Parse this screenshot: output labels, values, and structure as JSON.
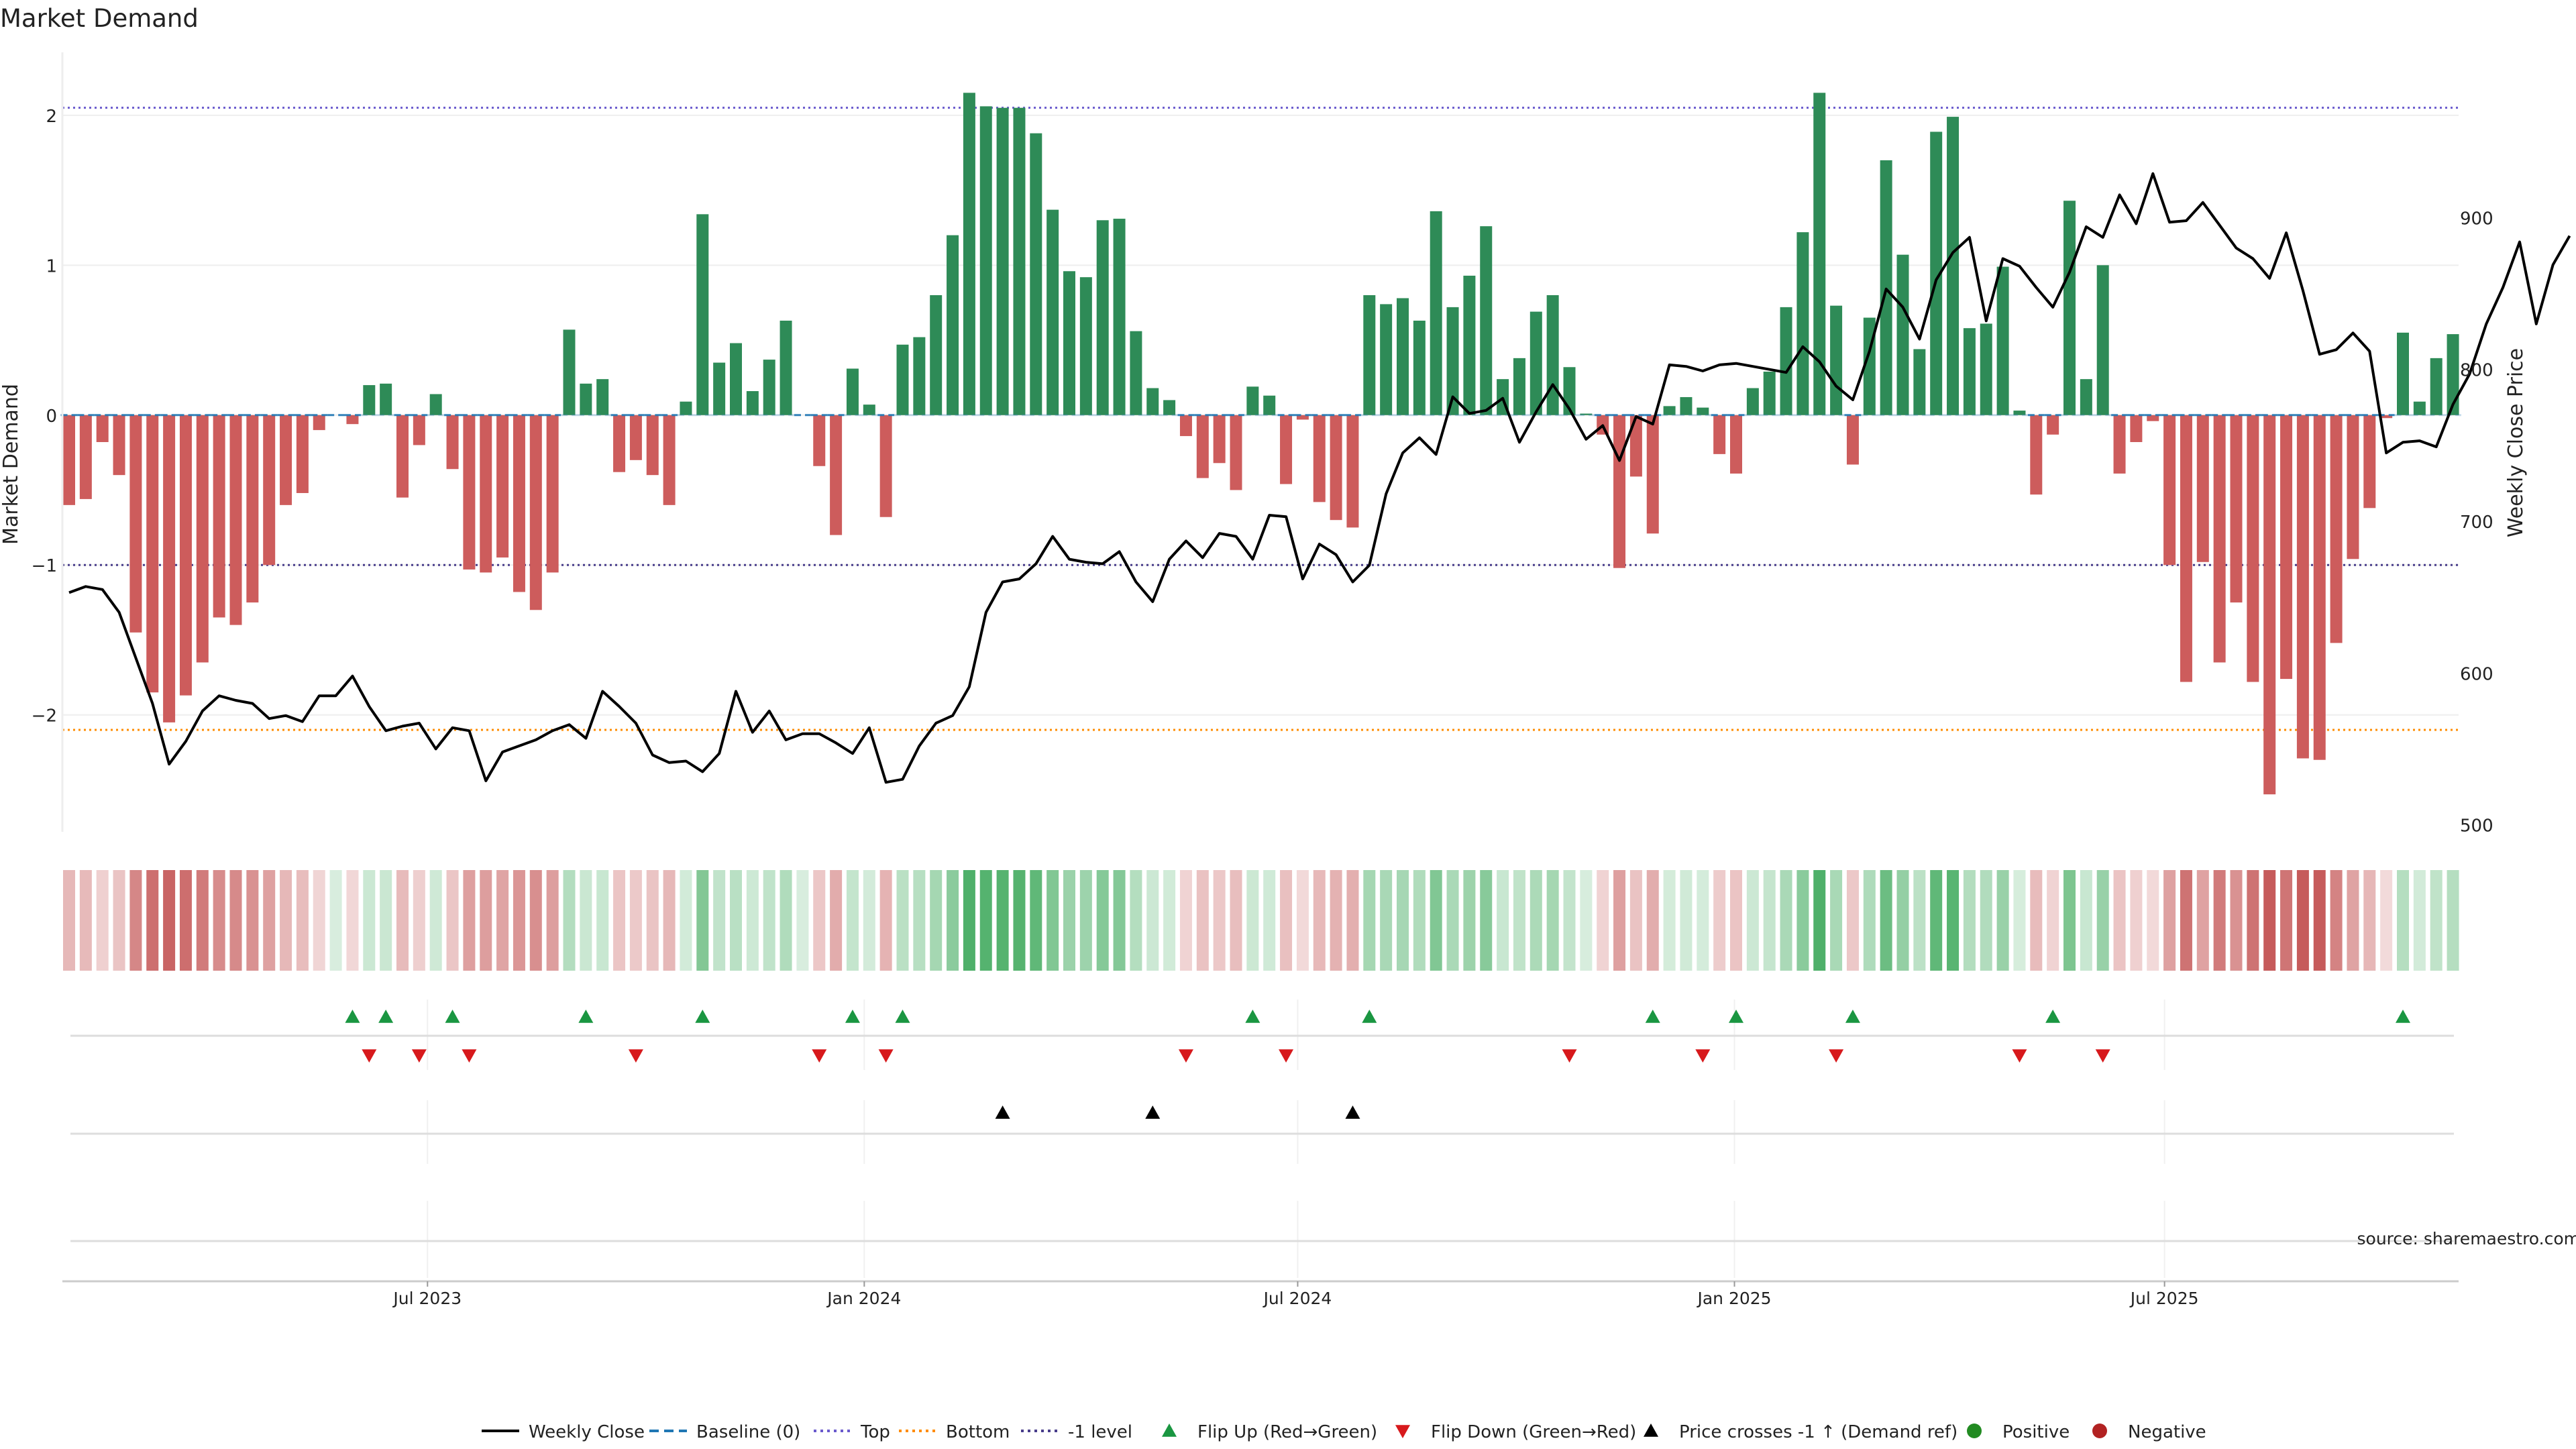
{
  "chart_data": {
    "type": "bar",
    "title": "Market Demand",
    "ylabel": "Market Demand",
    "y2label": "Weekly Close Price",
    "ylim": [
      -2.78,
      2.42
    ],
    "y2lim": [
      495.4,
      1008.9
    ],
    "yticks": [
      -2,
      -1,
      0,
      1,
      2
    ],
    "yticklabels": [
      "−2",
      "−1",
      "0",
      "1",
      "2"
    ],
    "y2ticks": [
      500,
      600,
      700,
      800,
      900
    ],
    "y2ticklabels": [
      "500",
      "600",
      "700",
      "800",
      "900"
    ],
    "reference_levels": {
      "top": 2.05,
      "bottom": -2.1,
      "minus_one": -1.0,
      "baseline": 0
    },
    "xticklabels": [
      "Jul 2023",
      "Jan 2024",
      "Jul 2024",
      "Jan 2025",
      "Jul 2025"
    ],
    "xtick_positions": [
      21.5,
      47.7,
      73.7,
      99.9,
      125.7
    ],
    "n_weeks": 144,
    "demand": [
      -0.6,
      -0.56,
      -0.18,
      -0.4,
      -1.45,
      -1.85,
      -2.05,
      -1.87,
      -1.65,
      -1.35,
      -1.4,
      -1.25,
      -1.0,
      -0.6,
      -0.52,
      -0.1,
      0.0,
      -0.06,
      0.2,
      0.21,
      -0.55,
      -0.2,
      0.14,
      -0.36,
      -1.03,
      -1.05,
      -0.95,
      -1.18,
      -1.3,
      -1.05,
      0.57,
      0.21,
      0.24,
      -0.38,
      -0.3,
      -0.4,
      -0.6,
      0.09,
      1.34,
      0.35,
      0.48,
      0.16,
      0.37,
      0.63,
      0.0,
      -0.34,
      -0.8,
      0.31,
      0.07,
      -0.68,
      0.47,
      0.52,
      0.8,
      1.2,
      2.15,
      2.06,
      2.05,
      2.05,
      1.88,
      1.37,
      0.96,
      0.92,
      1.3,
      1.31,
      0.56,
      0.18,
      0.1,
      -0.14,
      -0.42,
      -0.32,
      -0.5,
      0.19,
      0.13,
      -0.46,
      -0.03,
      -0.58,
      -0.7,
      -0.75,
      0.8,
      0.74,
      0.78,
      0.63,
      1.36,
      0.72,
      0.93,
      1.26,
      0.24,
      0.38,
      0.69,
      0.8,
      0.32,
      0.01,
      -0.13,
      -1.02,
      -0.41,
      -0.79,
      0.06,
      0.12,
      0.05,
      -0.26,
      -0.39,
      0.18,
      0.29,
      0.72,
      1.22,
      2.15,
      0.73,
      -0.33,
      0.65,
      1.7,
      1.07,
      0.44,
      1.89,
      1.99,
      0.58,
      0.61,
      0.99,
      0.03,
      -0.53,
      -0.13,
      1.43,
      0.24,
      1.0,
      -0.39,
      -0.18,
      -0.04,
      -1.0,
      -1.78,
      -0.98,
      -1.65,
      -1.25,
      -1.78,
      -2.53,
      -1.76,
      -2.29,
      -2.3,
      -1.52,
      -0.96,
      -0.62,
      -0.02,
      0.55,
      0.09,
      0.38,
      0.54
    ],
    "close": [
      653,
      657,
      655,
      640,
      610,
      580,
      540,
      555,
      575,
      585,
      582,
      580,
      570,
      572,
      568,
      585,
      585,
      598,
      578,
      562,
      565,
      567,
      550,
      564,
      562,
      529,
      548,
      552,
      556,
      562,
      566,
      557,
      588,
      578,
      567,
      546,
      541,
      542,
      535,
      547,
      588,
      561,
      575,
      556,
      560,
      560,
      554,
      547,
      564,
      528,
      530,
      552,
      567,
      572,
      591,
      640,
      660,
      662,
      672,
      690,
      675,
      673,
      672,
      680,
      660,
      647,
      675,
      687,
      676,
      692,
      690,
      675,
      704,
      703,
      662,
      685,
      678,
      660,
      671,
      718,
      745,
      755,
      744,
      782,
      771,
      773,
      781,
      752,
      772,
      790,
      774,
      754,
      763,
      740,
      769,
      764,
      803,
      802,
      799,
      803,
      804,
      802,
      800,
      798,
      815,
      805,
      789,
      780,
      812,
      853,
      841,
      820,
      859,
      877,
      887,
      832,
      873,
      868,
      854,
      841,
      864,
      894,
      887,
      915,
      896,
      929,
      897,
      898,
      910,
      895,
      880,
      873,
      860,
      890,
      852,
      810,
      813,
      824,
      812,
      745,
      752,
      753,
      749,
      777,
      797,
      830,
      854,
      884,
      830,
      869,
      888
    ],
    "strength_strip_note": "per-week demand intensity strip below the main plot",
    "flip_up_weeks": [
      17,
      19,
      23,
      31,
      38,
      47,
      50,
      71,
      78,
      95,
      100,
      107,
      119,
      140
    ],
    "flip_down_weeks": [
      18,
      21,
      24,
      34,
      45,
      49,
      67,
      73,
      90,
      98,
      106,
      117,
      122
    ],
    "price_cross_weeks": [
      56,
      65,
      77
    ],
    "colors": {
      "positive": "#2e8b57",
      "negative": "#cd5c5c",
      "close": "#000000",
      "baseline": "#1f77b4",
      "top": "#6a5acd",
      "bottom": "#ff8c00",
      "minus_one_level": "#483d8b",
      "flip_up": "#1a9641",
      "flip_down": "#d7191c",
      "price_cross": "#000000",
      "positive_dot": "#228b22",
      "negative_dot": "#b22222"
    }
  },
  "legend": [
    {
      "label": "Weekly Close",
      "marker": "line",
      "color": "#000000"
    },
    {
      "label": "Baseline (0)",
      "marker": "dash",
      "color": "#1f77b4"
    },
    {
      "label": "Top",
      "marker": "dot",
      "color": "#6a5acd"
    },
    {
      "label": "Bottom",
      "marker": "dot",
      "color": "#ff8c00"
    },
    {
      "label": "-1 level",
      "marker": "dot",
      "color": "#483d8b"
    },
    {
      "label": "Flip Up (Red→Green)",
      "marker": "tri-up",
      "color": "#1a9641"
    },
    {
      "label": "Flip Down (Green→Red)",
      "marker": "tri-down",
      "color": "#d7191c"
    },
    {
      "label": "Price crosses -1 ↑ (Demand ref)",
      "marker": "tri-up",
      "color": "#000000"
    },
    {
      "label": "Positive",
      "marker": "circle",
      "color": "#228b22"
    },
    {
      "label": "Negative",
      "marker": "circle",
      "color": "#b22222"
    }
  ],
  "source": "source: sharemaestro.com"
}
